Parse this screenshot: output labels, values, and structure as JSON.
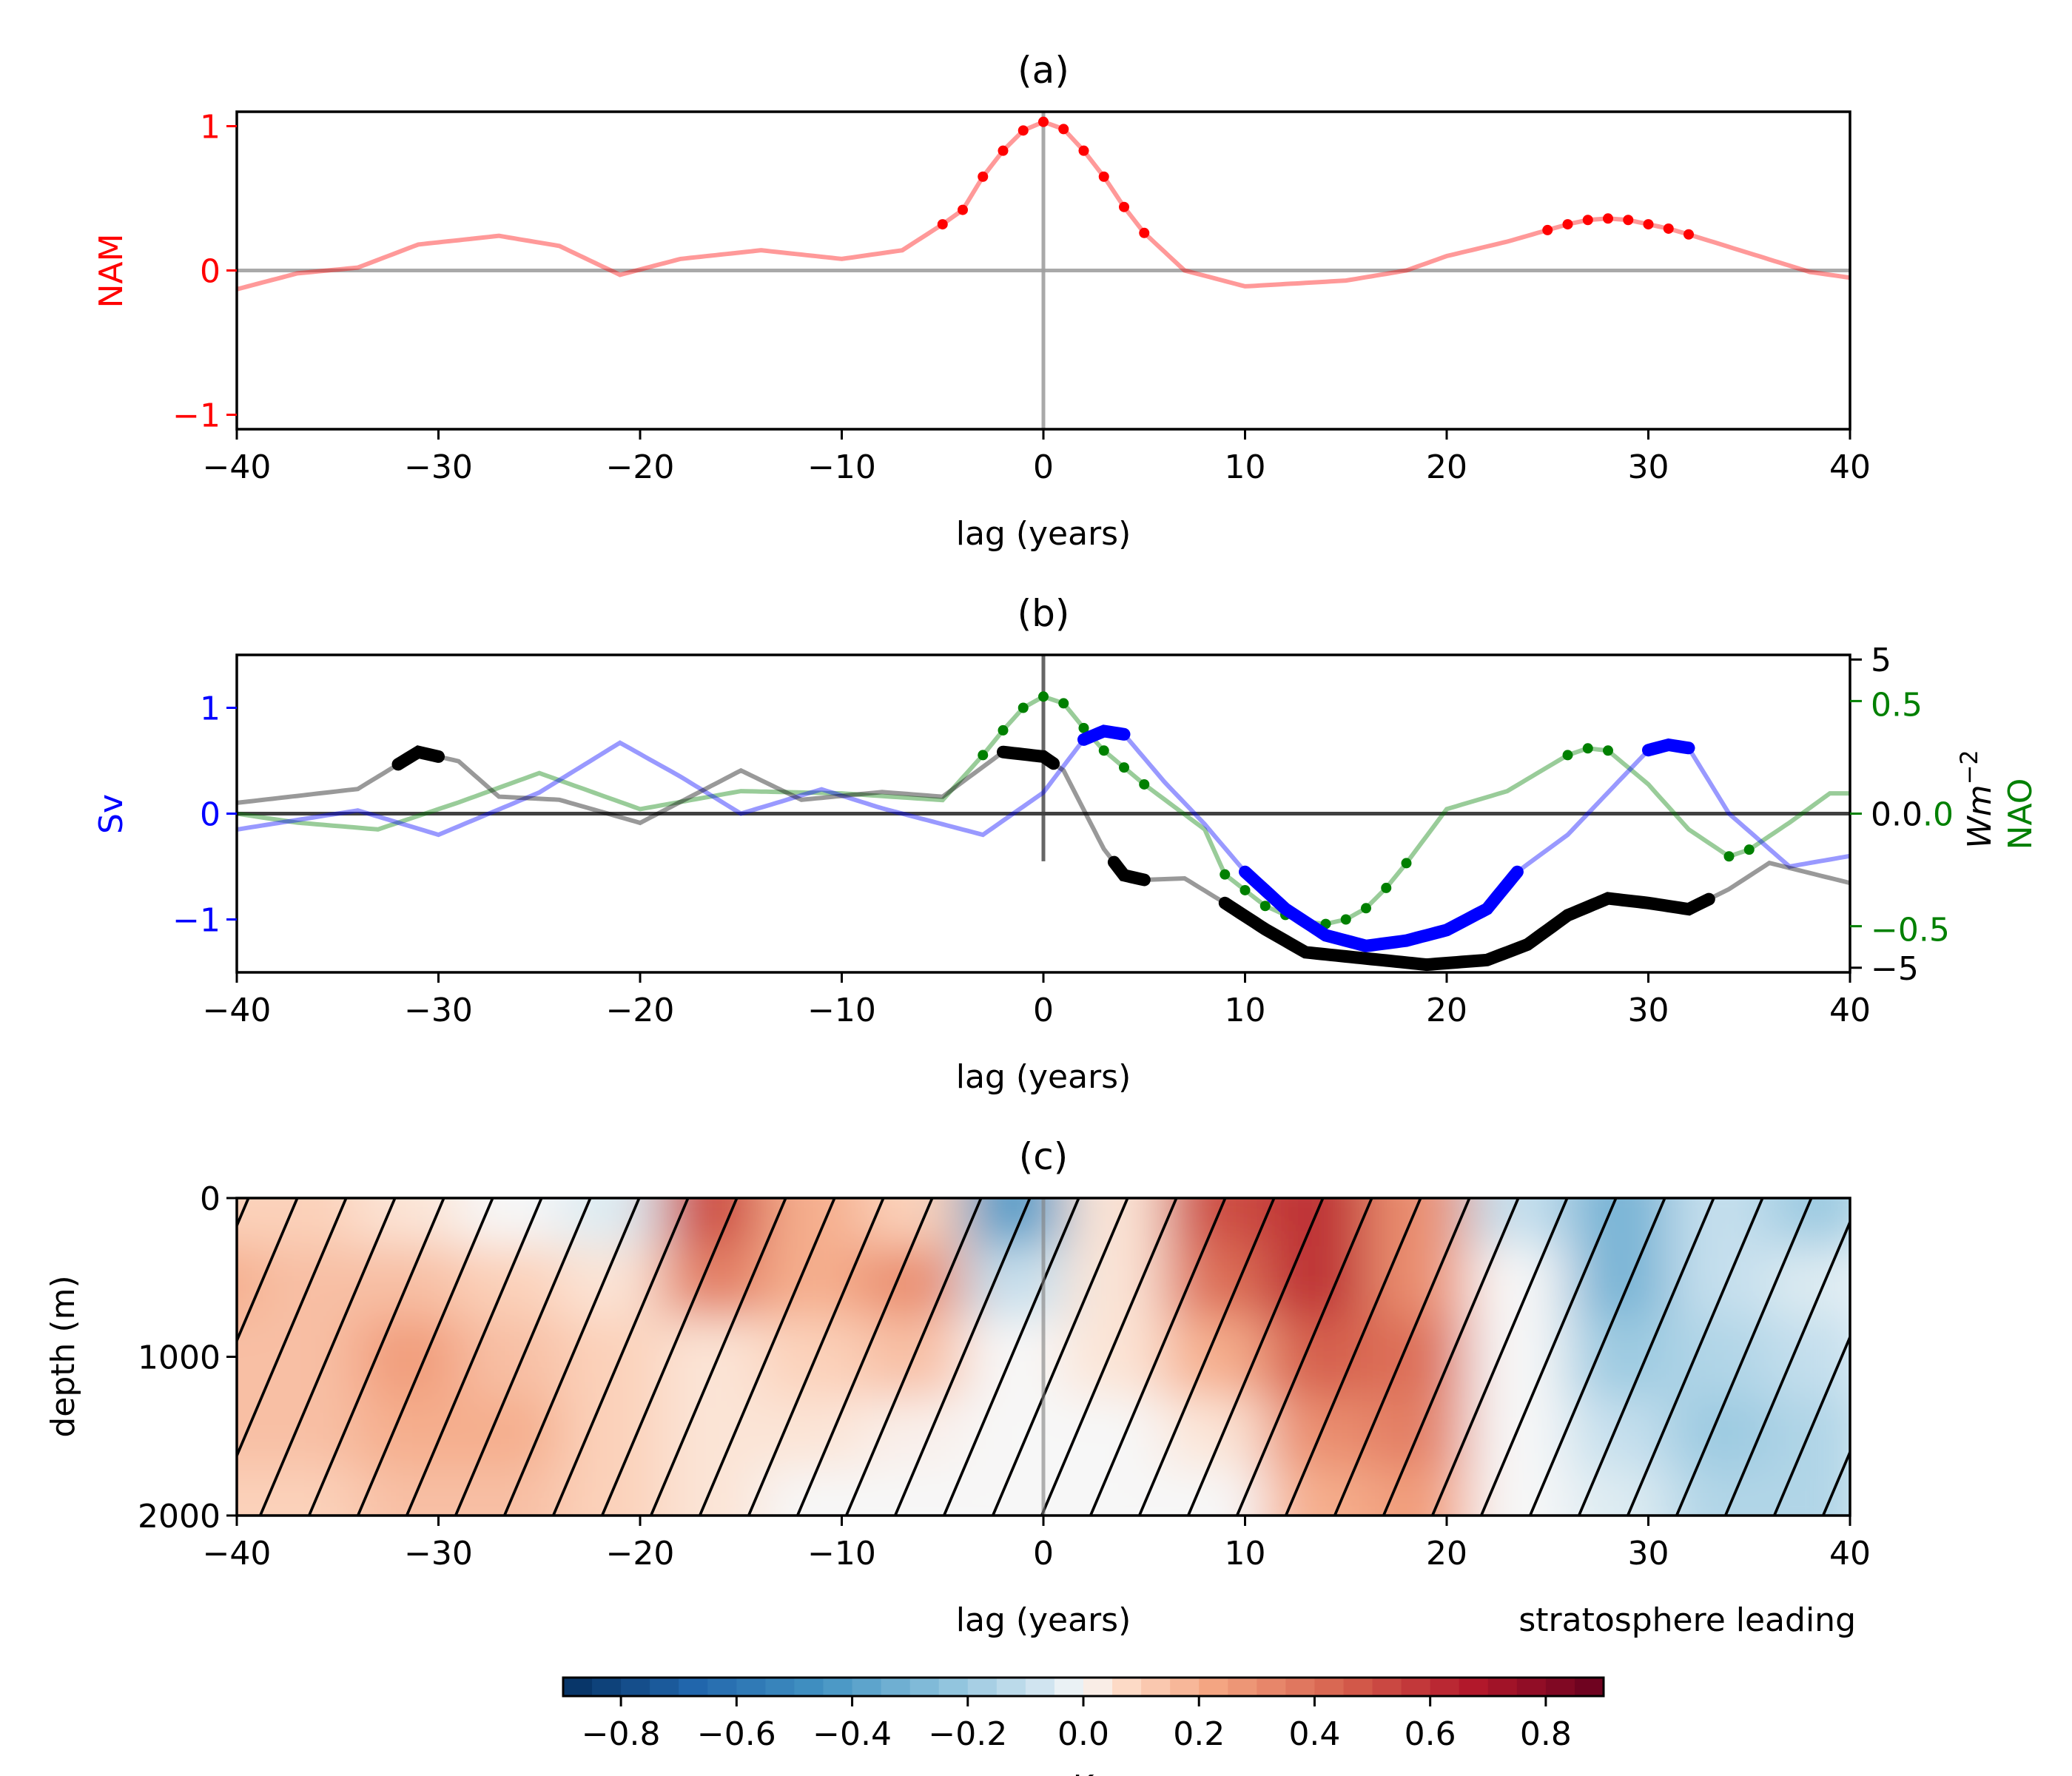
{
  "chart_data": [
    {
      "type": "line",
      "title": "(a)",
      "xlabel": "lag (years)",
      "ylabel": "NAM",
      "xlim": [
        -40,
        40
      ],
      "ylim": [
        -1.1,
        1.1
      ],
      "xticks": [
        "−40",
        "−30",
        "−20",
        "−10",
        "0",
        "10",
        "20",
        "30",
        "40"
      ],
      "yticks": [
        {
          "v": 1,
          "label": "1"
        },
        {
          "v": 0,
          "label": "0"
        },
        {
          "v": -1,
          "label": "−1"
        }
      ],
      "colors": {
        "series": "#ff0000",
        "axis_label": "#ff0000",
        "zero_line": "#a0a0a0"
      },
      "series": [
        {
          "x": [
            -40,
            -37,
            -34,
            -31,
            -27,
            -24,
            -21,
            -18,
            -14,
            -10,
            -7,
            -5,
            -4,
            -3,
            -2,
            -1,
            0,
            1,
            2,
            3,
            4,
            5,
            7,
            10,
            15,
            18,
            20,
            23,
            25,
            26,
            27,
            28,
            29,
            30,
            31,
            32,
            35,
            38,
            40
          ],
          "y": [
            -0.13,
            -0.02,
            0.02,
            0.18,
            0.24,
            0.17,
            -0.03,
            0.08,
            0.14,
            0.08,
            0.14,
            0.32,
            0.42,
            0.65,
            0.83,
            0.97,
            1.03,
            0.98,
            0.83,
            0.65,
            0.44,
            0.26,
            0.0,
            -0.11,
            -0.07,
            0.0,
            0.1,
            0.2,
            0.28,
            0.32,
            0.35,
            0.36,
            0.35,
            0.32,
            0.29,
            0.25,
            0.12,
            -0.01,
            -0.05
          ],
          "marked_ranges": [
            [
              -5,
              5
            ],
            [
              25,
              32
            ]
          ]
        }
      ]
    },
    {
      "type": "line",
      "title": "(b)",
      "xlabel": "lag (years)",
      "ylabel": "Sv",
      "ylabel_right": [
        "Wm",
        "−2"
      ],
      "ylabel_right2": "NAO",
      "xlim": [
        -40,
        40
      ],
      "ylim": [
        -1.5,
        1.5
      ],
      "ylim_right": [
        -5.15,
        5.15
      ],
      "ylim_right2": [
        -0.705,
        0.705
      ],
      "xticks": [
        "−40",
        "−30",
        "−20",
        "−10",
        "0",
        "10",
        "20",
        "30",
        "40"
      ],
      "yticks": [
        {
          "v": 1,
          "label": "1"
        },
        {
          "v": 0,
          "label": "0"
        },
        {
          "v": -1,
          "label": "−1"
        }
      ],
      "yticks_right": [
        {
          "v": 5,
          "label": "5"
        },
        {
          "v": 0,
          "label": "0.0"
        },
        {
          "v": -5,
          "label": "−5"
        }
      ],
      "yticks_right2": [
        {
          "v": 0.5,
          "label": "0.5"
        },
        {
          "v": 0,
          "label": "0.0"
        },
        {
          "v": -0.5,
          "label": "−0.5"
        }
      ],
      "colors": {
        "Sv": "#0000ff",
        "Wm-2": "#000000",
        "NAO": "#008000",
        "zero_line": "#404040"
      },
      "series": [
        {
          "axis": "left",
          "color": "#0000ff",
          "x": [
            -40,
            -34,
            -30,
            -25,
            -21,
            -18,
            -15,
            -11,
            -8,
            -5,
            -3,
            0,
            2,
            3,
            4,
            6,
            8,
            10,
            12,
            14,
            16,
            18,
            20,
            22,
            23.5,
            26,
            28,
            30,
            31,
            32,
            34,
            37,
            40
          ],
          "y": [
            -0.15,
            0.03,
            -0.2,
            0.2,
            0.67,
            0.35,
            0.0,
            0.23,
            0.05,
            -0.1,
            -0.2,
            0.2,
            0.7,
            0.78,
            0.75,
            0.3,
            -0.1,
            -0.55,
            -0.9,
            -1.15,
            -1.25,
            -1.2,
            -1.1,
            -0.9,
            -0.55,
            -0.2,
            0.2,
            0.6,
            0.65,
            0.62,
            0.0,
            -0.5,
            -0.4
          ],
          "highlighted_ranges": [
            [
              2,
              4
            ],
            [
              10,
              23.5
            ],
            [
              30,
              32
            ]
          ]
        },
        {
          "axis": "right",
          "color": "#000000",
          "x": [
            -40,
            -34,
            -31,
            -29,
            -27,
            -24,
            -20,
            -15,
            -12,
            -8,
            -5,
            -2,
            0,
            1,
            3,
            4,
            5,
            7,
            9,
            11,
            13,
            16,
            19,
            22,
            24,
            26,
            28,
            30,
            32,
            34,
            36,
            40
          ],
          "y": [
            0.35,
            0.8,
            2.0,
            1.7,
            0.55,
            0.45,
            -0.3,
            1.4,
            0.45,
            0.7,
            0.55,
            2.0,
            1.85,
            1.4,
            -1.15,
            -2.0,
            -2.15,
            -2.1,
            -2.9,
            -3.75,
            -4.5,
            -4.7,
            -4.9,
            -4.75,
            -4.25,
            -3.3,
            -2.75,
            -2.9,
            -3.1,
            -2.45,
            -1.6,
            -2.25
          ],
          "highlighted_ranges": [
            [
              -32,
              -30
            ],
            [
              -2,
              0.5
            ],
            [
              3.5,
              5
            ],
            [
              9,
              33
            ]
          ]
        },
        {
          "axis": "right2",
          "color": "#008000",
          "x": [
            -40,
            -37,
            -33,
            -29,
            -25,
            -20,
            -15,
            -10,
            -5,
            -3,
            -2,
            -1,
            0,
            1,
            2,
            3,
            5,
            8,
            9,
            10,
            11,
            12,
            13,
            14,
            15,
            16,
            17,
            18,
            20,
            23,
            26,
            27,
            28,
            30,
            32,
            34,
            35,
            37,
            39,
            40
          ],
          "y": [
            0.0,
            -0.04,
            -0.07,
            0.05,
            0.18,
            0.02,
            0.1,
            0.09,
            0.06,
            0.26,
            0.37,
            0.47,
            0.52,
            0.49,
            0.38,
            0.28,
            0.13,
            -0.07,
            -0.27,
            -0.34,
            -0.41,
            -0.45,
            -0.48,
            -0.49,
            -0.47,
            -0.42,
            -0.33,
            -0.22,
            0.02,
            0.1,
            0.26,
            0.29,
            0.28,
            0.13,
            -0.07,
            -0.19,
            -0.16,
            -0.04,
            0.09,
            0.09
          ],
          "marked_ranges": [
            [
              -3,
              5
            ],
            [
              9,
              18
            ],
            [
              26,
              28
            ],
            [
              34,
              35
            ]
          ]
        }
      ]
    },
    {
      "type": "heatmap",
      "title": "(c)",
      "xlabel": "lag (years)",
      "ylabel": "depth (m)",
      "annotation": "stratosphere leading",
      "xlim": [
        -40,
        40
      ],
      "ylim": [
        2000,
        0
      ],
      "xticks": [
        "−40",
        "−30",
        "−20",
        "−10",
        "0",
        "10",
        "20",
        "30",
        "40"
      ],
      "yticks": [
        {
          "v": 0,
          "label": "0"
        },
        {
          "v": 1000,
          "label": "1000"
        },
        {
          "v": 2000,
          "label": "2000"
        }
      ],
      "hatched": true,
      "colormap": "RdBu_r",
      "x": [
        -40,
        -35,
        -30,
        -25,
        -20,
        -15,
        -10,
        -5,
        0,
        5,
        10,
        15,
        20,
        25,
        30,
        35,
        40
      ],
      "depth": [
        100,
        500,
        1000,
        1500,
        1900
      ],
      "z": [
        [
          0.1,
          0.1,
          0.05,
          0.0,
          -0.05,
          0.5,
          0.2,
          0.1,
          -0.4,
          0.05,
          0.5,
          0.6,
          0.3,
          -0.1,
          -0.3,
          -0.1,
          -0.2
        ],
        [
          0.2,
          0.15,
          0.15,
          0.1,
          0.05,
          0.35,
          0.2,
          0.3,
          -0.1,
          0.05,
          0.4,
          0.6,
          0.3,
          0.0,
          -0.3,
          -0.1,
          -0.05
        ],
        [
          0.15,
          0.15,
          0.25,
          0.15,
          0.1,
          0.05,
          0.1,
          0.15,
          0.0,
          0.05,
          0.2,
          0.45,
          0.4,
          0.0,
          -0.2,
          -0.15,
          -0.1
        ],
        [
          0.15,
          0.15,
          0.2,
          0.2,
          0.1,
          0.05,
          0.05,
          0.02,
          0.0,
          0.0,
          0.05,
          0.3,
          0.35,
          0.0,
          -0.1,
          -0.2,
          -0.15
        ],
        [
          0.1,
          0.1,
          0.15,
          0.15,
          0.1,
          0.05,
          0.0,
          0.0,
          0.0,
          0.0,
          0.0,
          0.2,
          0.25,
          0.0,
          -0.05,
          -0.15,
          -0.15
        ]
      ],
      "colorbar": {
        "range": [
          -0.9,
          0.9
        ],
        "ticks": [
          {
            "v": -0.8,
            "label": "−0.8"
          },
          {
            "v": -0.6,
            "label": "−0.6"
          },
          {
            "v": -0.4,
            "label": "−0.4"
          },
          {
            "v": -0.2,
            "label": "−0.2"
          },
          {
            "v": 0,
            "label": "0.0"
          },
          {
            "v": 0.2,
            "label": "0.2"
          },
          {
            "v": 0.4,
            "label": "0.4"
          },
          {
            "v": 0.6,
            "label": "0.6"
          },
          {
            "v": 0.8,
            "label": "0.8"
          }
        ],
        "label": "K"
      }
    }
  ]
}
